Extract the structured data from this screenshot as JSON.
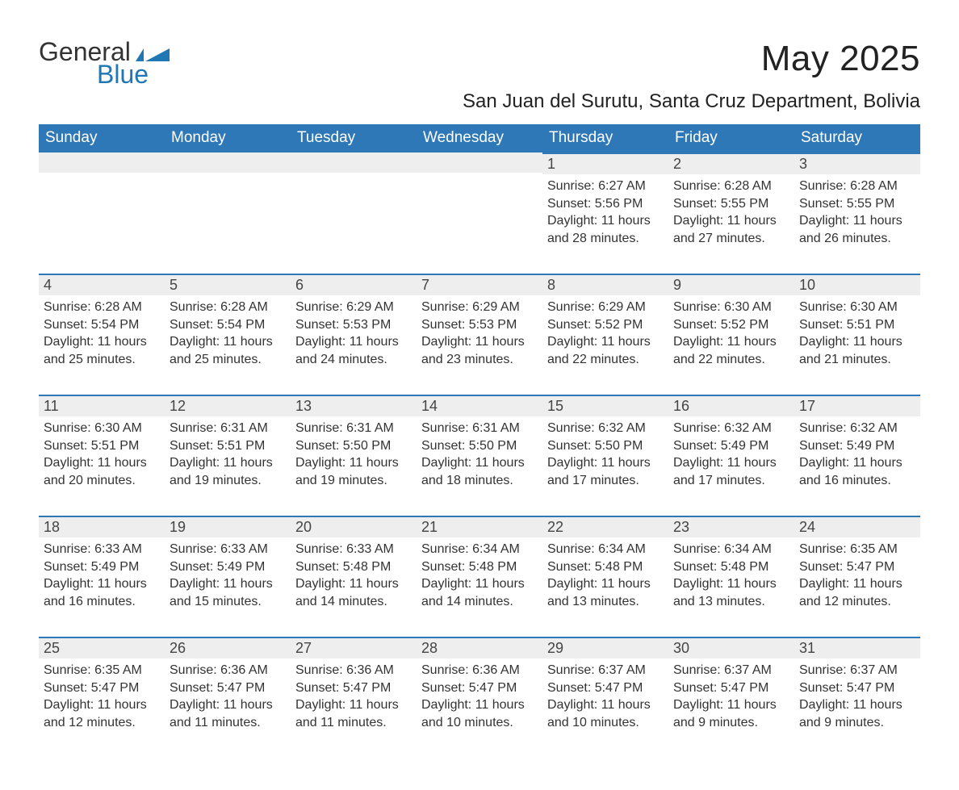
{
  "logo": {
    "word1": "General",
    "word2": "Blue",
    "text_color": "#333333",
    "accent_color": "#1f77b4"
  },
  "header": {
    "month_title": "May 2025",
    "location": "San Juan del Surutu, Santa Cruz Department, Bolivia"
  },
  "calendar": {
    "type": "table",
    "header_bg": "#2f78b7",
    "header_fg": "#ffffff",
    "daynum_bg": "#eeeeee",
    "daynum_border_top": "#2f78b7",
    "columns": [
      "Sunday",
      "Monday",
      "Tuesday",
      "Wednesday",
      "Thursday",
      "Friday",
      "Saturday"
    ],
    "weeks": [
      [
        null,
        null,
        null,
        null,
        {
          "n": "1",
          "sunrise": "Sunrise: 6:27 AM",
          "sunset": "Sunset: 5:56 PM",
          "dl1": "Daylight: 11 hours",
          "dl2": "and 28 minutes."
        },
        {
          "n": "2",
          "sunrise": "Sunrise: 6:28 AM",
          "sunset": "Sunset: 5:55 PM",
          "dl1": "Daylight: 11 hours",
          "dl2": "and 27 minutes."
        },
        {
          "n": "3",
          "sunrise": "Sunrise: 6:28 AM",
          "sunset": "Sunset: 5:55 PM",
          "dl1": "Daylight: 11 hours",
          "dl2": "and 26 minutes."
        }
      ],
      [
        {
          "n": "4",
          "sunrise": "Sunrise: 6:28 AM",
          "sunset": "Sunset: 5:54 PM",
          "dl1": "Daylight: 11 hours",
          "dl2": "and 25 minutes."
        },
        {
          "n": "5",
          "sunrise": "Sunrise: 6:28 AM",
          "sunset": "Sunset: 5:54 PM",
          "dl1": "Daylight: 11 hours",
          "dl2": "and 25 minutes."
        },
        {
          "n": "6",
          "sunrise": "Sunrise: 6:29 AM",
          "sunset": "Sunset: 5:53 PM",
          "dl1": "Daylight: 11 hours",
          "dl2": "and 24 minutes."
        },
        {
          "n": "7",
          "sunrise": "Sunrise: 6:29 AM",
          "sunset": "Sunset: 5:53 PM",
          "dl1": "Daylight: 11 hours",
          "dl2": "and 23 minutes."
        },
        {
          "n": "8",
          "sunrise": "Sunrise: 6:29 AM",
          "sunset": "Sunset: 5:52 PM",
          "dl1": "Daylight: 11 hours",
          "dl2": "and 22 minutes."
        },
        {
          "n": "9",
          "sunrise": "Sunrise: 6:30 AM",
          "sunset": "Sunset: 5:52 PM",
          "dl1": "Daylight: 11 hours",
          "dl2": "and 22 minutes."
        },
        {
          "n": "10",
          "sunrise": "Sunrise: 6:30 AM",
          "sunset": "Sunset: 5:51 PM",
          "dl1": "Daylight: 11 hours",
          "dl2": "and 21 minutes."
        }
      ],
      [
        {
          "n": "11",
          "sunrise": "Sunrise: 6:30 AM",
          "sunset": "Sunset: 5:51 PM",
          "dl1": "Daylight: 11 hours",
          "dl2": "and 20 minutes."
        },
        {
          "n": "12",
          "sunrise": "Sunrise: 6:31 AM",
          "sunset": "Sunset: 5:51 PM",
          "dl1": "Daylight: 11 hours",
          "dl2": "and 19 minutes."
        },
        {
          "n": "13",
          "sunrise": "Sunrise: 6:31 AM",
          "sunset": "Sunset: 5:50 PM",
          "dl1": "Daylight: 11 hours",
          "dl2": "and 19 minutes."
        },
        {
          "n": "14",
          "sunrise": "Sunrise: 6:31 AM",
          "sunset": "Sunset: 5:50 PM",
          "dl1": "Daylight: 11 hours",
          "dl2": "and 18 minutes."
        },
        {
          "n": "15",
          "sunrise": "Sunrise: 6:32 AM",
          "sunset": "Sunset: 5:50 PM",
          "dl1": "Daylight: 11 hours",
          "dl2": "and 17 minutes."
        },
        {
          "n": "16",
          "sunrise": "Sunrise: 6:32 AM",
          "sunset": "Sunset: 5:49 PM",
          "dl1": "Daylight: 11 hours",
          "dl2": "and 17 minutes."
        },
        {
          "n": "17",
          "sunrise": "Sunrise: 6:32 AM",
          "sunset": "Sunset: 5:49 PM",
          "dl1": "Daylight: 11 hours",
          "dl2": "and 16 minutes."
        }
      ],
      [
        {
          "n": "18",
          "sunrise": "Sunrise: 6:33 AM",
          "sunset": "Sunset: 5:49 PM",
          "dl1": "Daylight: 11 hours",
          "dl2": "and 16 minutes."
        },
        {
          "n": "19",
          "sunrise": "Sunrise: 6:33 AM",
          "sunset": "Sunset: 5:49 PM",
          "dl1": "Daylight: 11 hours",
          "dl2": "and 15 minutes."
        },
        {
          "n": "20",
          "sunrise": "Sunrise: 6:33 AM",
          "sunset": "Sunset: 5:48 PM",
          "dl1": "Daylight: 11 hours",
          "dl2": "and 14 minutes."
        },
        {
          "n": "21",
          "sunrise": "Sunrise: 6:34 AM",
          "sunset": "Sunset: 5:48 PM",
          "dl1": "Daylight: 11 hours",
          "dl2": "and 14 minutes."
        },
        {
          "n": "22",
          "sunrise": "Sunrise: 6:34 AM",
          "sunset": "Sunset: 5:48 PM",
          "dl1": "Daylight: 11 hours",
          "dl2": "and 13 minutes."
        },
        {
          "n": "23",
          "sunrise": "Sunrise: 6:34 AM",
          "sunset": "Sunset: 5:48 PM",
          "dl1": "Daylight: 11 hours",
          "dl2": "and 13 minutes."
        },
        {
          "n": "24",
          "sunrise": "Sunrise: 6:35 AM",
          "sunset": "Sunset: 5:47 PM",
          "dl1": "Daylight: 11 hours",
          "dl2": "and 12 minutes."
        }
      ],
      [
        {
          "n": "25",
          "sunrise": "Sunrise: 6:35 AM",
          "sunset": "Sunset: 5:47 PM",
          "dl1": "Daylight: 11 hours",
          "dl2": "and 12 minutes."
        },
        {
          "n": "26",
          "sunrise": "Sunrise: 6:36 AM",
          "sunset": "Sunset: 5:47 PM",
          "dl1": "Daylight: 11 hours",
          "dl2": "and 11 minutes."
        },
        {
          "n": "27",
          "sunrise": "Sunrise: 6:36 AM",
          "sunset": "Sunset: 5:47 PM",
          "dl1": "Daylight: 11 hours",
          "dl2": "and 11 minutes."
        },
        {
          "n": "28",
          "sunrise": "Sunrise: 6:36 AM",
          "sunset": "Sunset: 5:47 PM",
          "dl1": "Daylight: 11 hours",
          "dl2": "and 10 minutes."
        },
        {
          "n": "29",
          "sunrise": "Sunrise: 6:37 AM",
          "sunset": "Sunset: 5:47 PM",
          "dl1": "Daylight: 11 hours",
          "dl2": "and 10 minutes."
        },
        {
          "n": "30",
          "sunrise": "Sunrise: 6:37 AM",
          "sunset": "Sunset: 5:47 PM",
          "dl1": "Daylight: 11 hours",
          "dl2": "and 9 minutes."
        },
        {
          "n": "31",
          "sunrise": "Sunrise: 6:37 AM",
          "sunset": "Sunset: 5:47 PM",
          "dl1": "Daylight: 11 hours",
          "dl2": "and 9 minutes."
        }
      ]
    ]
  }
}
